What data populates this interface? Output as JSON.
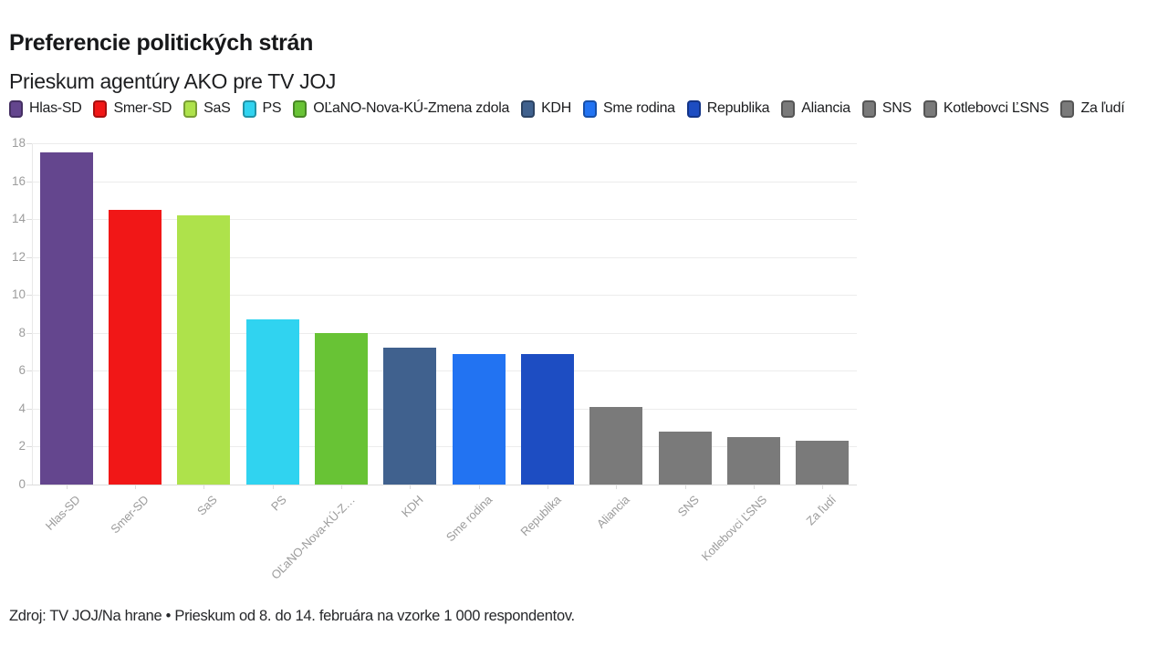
{
  "title": "Preferencie politických strán",
  "subtitle": "Prieskum agentúry AKO pre TV JOJ",
  "footer": "Zdroj: TV JOJ/Na hrane • Prieskum od 8. do 14. februára na vzorke 1 000 respondentov.",
  "chart_data": {
    "type": "bar",
    "title": "Preferencie politických strán",
    "subtitle": "Prieskum agentúry AKO pre TV JOJ",
    "source_note": "Zdroj: TV JOJ/Na hrane • Prieskum od 8. do 14. februára na vzorke 1 000 respondentov.",
    "categories": [
      "Hlas-SD",
      "Smer-SD",
      "SaS",
      "PS",
      "OĽaNO-Nova-KÚ-Zmena zdola",
      "KDH",
      "Sme rodina",
      "Republika",
      "Aliancia",
      "SNS",
      "Kotlebovci ĽSNS",
      "Za ľudí"
    ],
    "x_tick_labels": [
      "Hlas-SD",
      "Smer-SD",
      "SaS",
      "PS",
      "OĽaNO-Nova-KÚ-Z…",
      "KDH",
      "Sme rodina",
      "Republika",
      "Aliancia",
      "SNS",
      "Kotlebovci ĽSNS",
      "Za ľudí"
    ],
    "values": [
      17.5,
      14.5,
      14.2,
      8.7,
      8.0,
      7.2,
      6.9,
      6.9,
      4.1,
      2.8,
      2.5,
      2.3
    ],
    "colors": [
      "#64468e",
      "#f11717",
      "#aee24b",
      "#30d3f0",
      "#68c335",
      "#40618e",
      "#2273f2",
      "#1d4dc2",
      "#7a7a7a",
      "#7a7a7a",
      "#7a7a7a",
      "#7a7a7a"
    ],
    "ylabel": "",
    "xlabel": "",
    "ylim": [
      0,
      18
    ],
    "yticks": [
      0,
      2,
      4,
      6,
      8,
      10,
      12,
      14,
      16,
      18
    ],
    "grid": true,
    "legend_position": "top",
    "legend_entries": [
      "Hlas-SD",
      "Smer-SD",
      "SaS",
      "PS",
      "OĽaNO-Nova-KÚ-Zmena zdola",
      "KDH",
      "Sme rodina",
      "Republika",
      "Aliancia",
      "SNS",
      "Kotlebovci ĽSNS",
      "Za ľudí"
    ]
  }
}
